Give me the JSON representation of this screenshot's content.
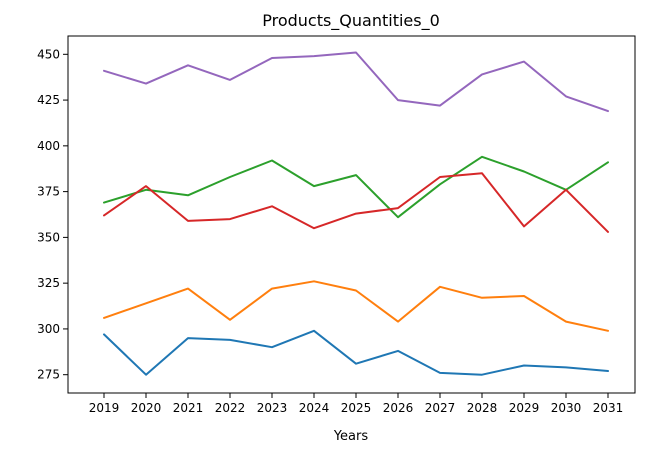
{
  "chart_data": {
    "type": "line",
    "title": "Products_Quantities_0",
    "xlabel": "Years",
    "ylabel": "",
    "categories": [
      "2019",
      "2020",
      "2021",
      "2022",
      "2023",
      "2024",
      "2025",
      "2026",
      "2027",
      "2028",
      "2029",
      "2030",
      "2031"
    ],
    "yticks": [
      275,
      300,
      325,
      350,
      375,
      400,
      425,
      450
    ],
    "ylim": [
      265,
      460
    ],
    "grid": false,
    "legend": "none",
    "series": [
      {
        "color": "#1f77b4",
        "values": [
          297,
          275,
          295,
          294,
          290,
          299,
          281,
          288,
          276,
          275,
          280,
          279,
          277
        ]
      },
      {
        "color": "#ff7f0e",
        "values": [
          306,
          314,
          322,
          305,
          322,
          326,
          321,
          304,
          323,
          317,
          318,
          304,
          299
        ]
      },
      {
        "color": "#2ca02c",
        "values": [
          369,
          376,
          373,
          383,
          392,
          378,
          384,
          361,
          379,
          394,
          386,
          376,
          391
        ]
      },
      {
        "color": "#d62728",
        "values": [
          362,
          378,
          359,
          360,
          367,
          355,
          363,
          366,
          383,
          385,
          356,
          376,
          353
        ]
      },
      {
        "color": "#9467bd",
        "values": [
          441,
          434,
          444,
          436,
          448,
          449,
          451,
          425,
          422,
          439,
          446,
          427,
          419
        ]
      }
    ]
  }
}
